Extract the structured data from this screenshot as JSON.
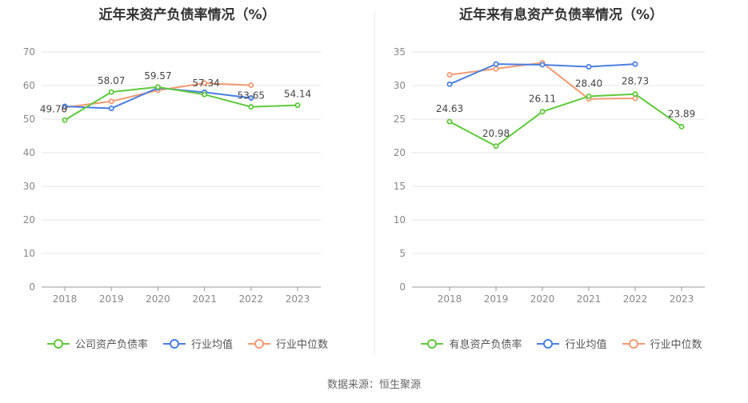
{
  "source": "数据来源：恒生聚源",
  "chart_data": [
    {
      "type": "line",
      "title": "近年来资产负债率情况（%）",
      "categories": [
        "2018",
        "2019",
        "2020",
        "2021",
        "2022",
        "2023"
      ],
      "ylim": [
        0,
        70
      ],
      "yticks": [
        0,
        10,
        20,
        30,
        40,
        50,
        60,
        70
      ],
      "grid": true,
      "legend_position": "bottom",
      "series": [
        {
          "name": "公司资产负债率",
          "color": "#5ec93a",
          "values": [
            49.7,
            58.07,
            59.57,
            57.34,
            53.65,
            54.14
          ],
          "labels": [
            "49.70",
            "58.07",
            "59.57",
            "57.34",
            "53.65",
            "54.14"
          ]
        },
        {
          "name": "行业均值",
          "color": "#4a7fe0",
          "values": [
            53.8,
            53.2,
            59.3,
            58.0,
            56.3,
            null
          ]
        },
        {
          "name": "行业中位数",
          "color": "#f39a73",
          "values": [
            53.5,
            55.3,
            58.6,
            60.7,
            60.1,
            null
          ]
        }
      ]
    },
    {
      "type": "line",
      "title": "近年来有息资产负债率情况（%）",
      "categories": [
        "2018",
        "2019",
        "2020",
        "2021",
        "2022",
        "2023"
      ],
      "ylim": [
        0,
        35
      ],
      "yticks": [
        0,
        5,
        10,
        15,
        20,
        25,
        30,
        35
      ],
      "grid": true,
      "legend_position": "bottom",
      "series": [
        {
          "name": "有息资产负债率",
          "color": "#5ec93a",
          "values": [
            24.63,
            20.98,
            26.11,
            28.4,
            28.73,
            23.89
          ],
          "labels": [
            "24.63",
            "20.98",
            "26.11",
            "28.40",
            "28.73",
            "23.89"
          ]
        },
        {
          "name": "行业均值",
          "color": "#4a7fe0",
          "values": [
            30.2,
            33.2,
            33.1,
            32.8,
            33.2,
            null
          ]
        },
        {
          "name": "行业中位数",
          "color": "#f39a73",
          "values": [
            31.6,
            32.5,
            33.4,
            28.0,
            28.1,
            null
          ]
        }
      ]
    }
  ]
}
